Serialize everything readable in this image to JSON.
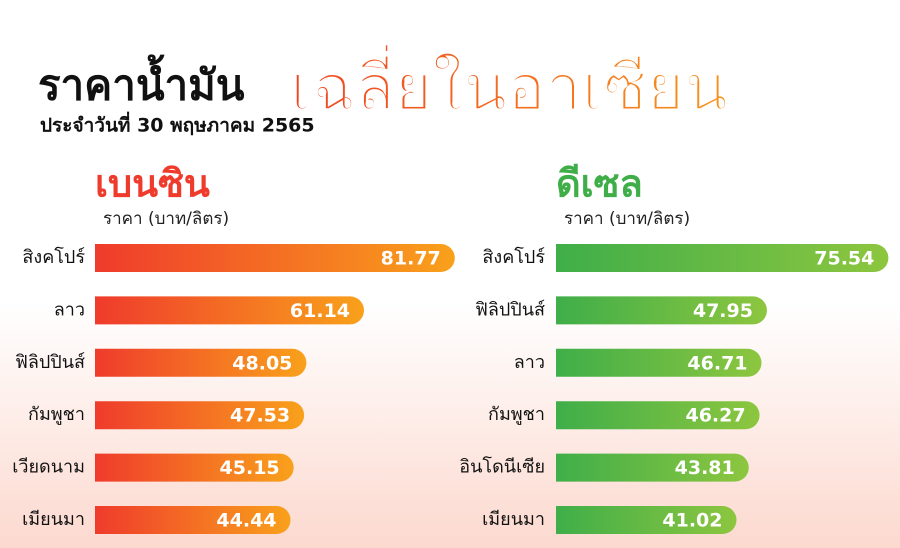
{
  "header": {
    "title": "ราคาน้ำมัน",
    "title_highlight": "เฉลี่ยในอาเซียน",
    "subtitle": "ประจำวันที่ 30 พฤษภาคม 2565"
  },
  "chart_data": [
    {
      "type": "bar",
      "orientation": "horizontal",
      "title": "เบนซิน",
      "subtitle": "ราคา (บาท/ลิตร)",
      "categories": [
        "สิงคโปร์",
        "ลาว",
        "ฟิลิปปินส์",
        "กัมพูชา",
        "เวียดนาม",
        "เมียนมา"
      ],
      "values": [
        81.77,
        61.14,
        48.05,
        47.53,
        45.15,
        44.44
      ],
      "color": [
        "#ef3b2c",
        "#f9a11b"
      ]
    },
    {
      "type": "bar",
      "orientation": "horizontal",
      "title": "ดีเซล",
      "subtitle": "ราคา (บาท/ลิตร)",
      "categories": [
        "สิงคโปร์",
        "ฟิลิปปินส์",
        "ลาว",
        "กัมพูชา",
        "อินโดนีเซีย",
        "เมียนมา"
      ],
      "values": [
        75.54,
        47.95,
        46.71,
        46.27,
        43.81,
        41.02
      ],
      "color": [
        "#3fae49",
        "#8dc63f"
      ]
    }
  ]
}
